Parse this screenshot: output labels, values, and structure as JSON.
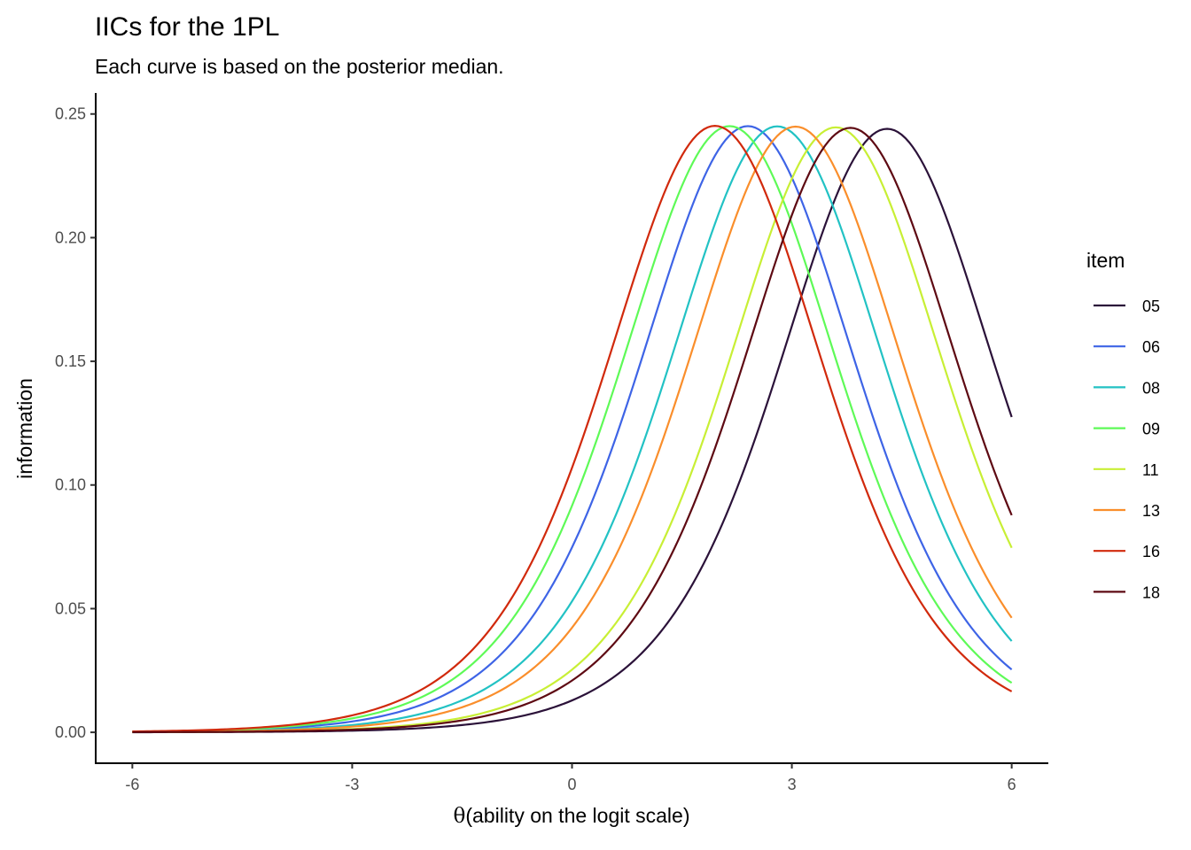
{
  "chart_data": {
    "type": "line",
    "title": "IICs for the 1PL",
    "subtitle": "Each curve is based on the posterior median.",
    "xlabel_symbol": "θ",
    "xlabel": "(ability on the logit scale)",
    "ylabel": "information",
    "xlim": [
      -6.5,
      6.5
    ],
    "ylim": [
      -0.0125,
      0.2585
    ],
    "x_ticks": [
      -6,
      -3,
      0,
      3,
      6
    ],
    "x_tick_labels": [
      "-6",
      "-3",
      "0",
      "3",
      "6"
    ],
    "y_ticks": [
      0,
      0.05,
      0.1,
      0.15,
      0.2,
      0.25
    ],
    "y_tick_labels": [
      "0.00",
      "0.05",
      "0.10",
      "0.15",
      "0.20",
      "0.25"
    ],
    "grid": false,
    "legend_title": "item",
    "legend_position": "right",
    "x_range": [
      -6,
      6
    ],
    "series": [
      {
        "name": "05",
        "difficulty": 4.3,
        "peak": 0.244,
        "color": "#2b1239"
      },
      {
        "name": "06",
        "difficulty": 2.4,
        "peak": 0.2451,
        "color": "#3e64e6"
      },
      {
        "name": "08",
        "difficulty": 2.8,
        "peak": 0.245,
        "color": "#22c2c4"
      },
      {
        "name": "09",
        "difficulty": 2.15,
        "peak": 0.2451,
        "color": "#5efa57"
      },
      {
        "name": "11",
        "difficulty": 3.6,
        "peak": 0.2446,
        "color": "#c8ef35"
      },
      {
        "name": "13",
        "difficulty": 3.05,
        "peak": 0.2449,
        "color": "#fa8e2b"
      },
      {
        "name": "16",
        "difficulty": 1.95,
        "peak": 0.2452,
        "color": "#d1290c"
      },
      {
        "name": "18",
        "difficulty": 3.8,
        "peak": 0.2444,
        "color": "#5e0a13"
      }
    ]
  }
}
